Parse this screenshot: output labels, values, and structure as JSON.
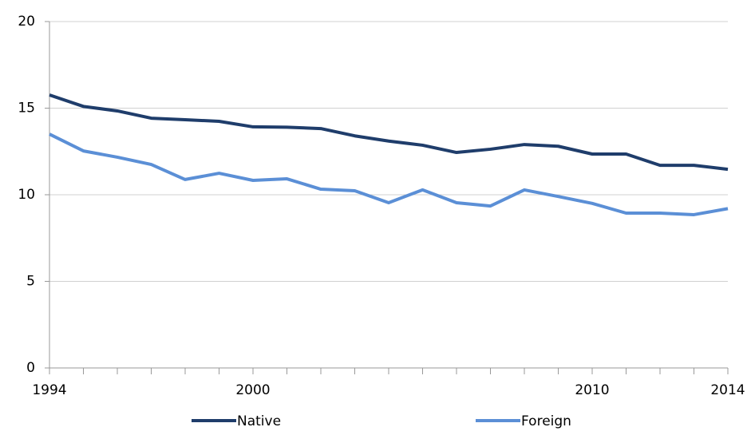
{
  "chart_data": {
    "type": "line",
    "x": [
      1994,
      1995,
      1996,
      1997,
      1998,
      1999,
      2000,
      2001,
      2002,
      2003,
      2004,
      2005,
      2006,
      2007,
      2008,
      2009,
      2010,
      2011,
      2012,
      2013,
      2014
    ],
    "series": [
      {
        "name": "Native",
        "color": "#1f3d6b",
        "values": [
          15.76,
          15.1,
          14.84,
          14.42,
          14.33,
          14.24,
          13.92,
          13.9,
          13.82,
          13.4,
          13.1,
          12.86,
          12.44,
          12.63,
          12.9,
          12.8,
          12.35,
          12.35,
          11.7,
          11.7,
          11.47
        ]
      },
      {
        "name": "Foreign",
        "color": "#5b8fd6",
        "values": [
          13.5,
          12.53,
          12.17,
          11.75,
          10.88,
          11.24,
          10.83,
          10.92,
          10.32,
          10.23,
          9.54,
          10.28,
          9.54,
          9.35,
          10.28,
          9.9,
          9.5,
          8.94,
          8.94,
          8.85,
          9.2
        ]
      }
    ],
    "xlim": [
      1994,
      2014
    ],
    "xticks": [
      1994,
      2000,
      2010,
      2014
    ],
    "ylim": [
      0,
      20
    ],
    "yticks": [
      0,
      5,
      10,
      15,
      20
    ],
    "grid": true,
    "legend": "bottom"
  }
}
